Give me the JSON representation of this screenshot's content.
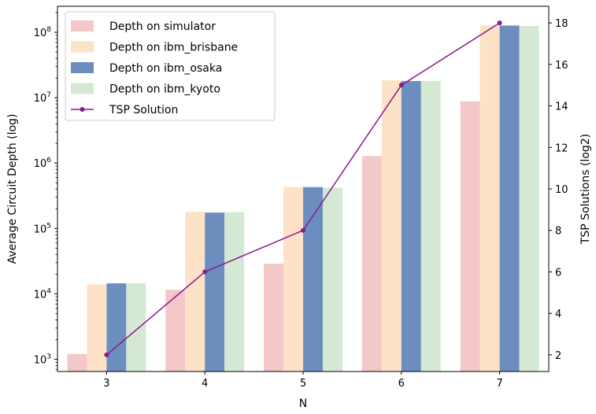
{
  "chart_data": {
    "type": "bar",
    "title": "",
    "xlabel": "N",
    "ylabel_left": "Average Circuit Depth (log)",
    "ylabel_right": "TSP Solutions (log2)",
    "categories": [
      "3",
      "4",
      "5",
      "6",
      "7"
    ],
    "y_left_scale": "log",
    "y_left_range": [
      650,
      250000000
    ],
    "y_left_ticks": [
      {
        "value": 1000,
        "base": "10",
        "exp": "3"
      },
      {
        "value": 10000,
        "base": "10",
        "exp": "4"
      },
      {
        "value": 100000,
        "base": "10",
        "exp": "5"
      },
      {
        "value": 1000000,
        "base": "10",
        "exp": "6"
      },
      {
        "value": 10000000,
        "base": "10",
        "exp": "7"
      },
      {
        "value": 100000000,
        "base": "10",
        "exp": "8"
      }
    ],
    "y_right_range": [
      1.2,
      18.8
    ],
    "y_right_ticks": [
      "2",
      "4",
      "6",
      "8",
      "10",
      "12",
      "14",
      "16",
      "18"
    ],
    "bar_series": [
      {
        "name": "Depth on simulator",
        "color": "#f4c7c8",
        "values": [
          1200,
          11500,
          29000,
          1280000,
          8800000
        ]
      },
      {
        "name": "Depth on ibm_brisbane",
        "color": "#fde2c7",
        "values": [
          14000,
          180000,
          430000,
          18500000,
          128000000
        ]
      },
      {
        "name": "Depth on ibm_osaka",
        "color": "#6c8ebf",
        "values": [
          14500,
          175000,
          430000,
          18000000,
          127000000
        ]
      },
      {
        "name": "Depth on ibm_kyoto",
        "color": "#d5e8d4",
        "values": [
          14500,
          178000,
          420000,
          18000000,
          125000000
        ]
      }
    ],
    "line_series": {
      "name": "TSP Solution",
      "color": "#8b1a8b",
      "values": [
        2,
        6,
        8,
        15,
        18
      ]
    },
    "legend_position": "upper-left",
    "grid": false
  }
}
